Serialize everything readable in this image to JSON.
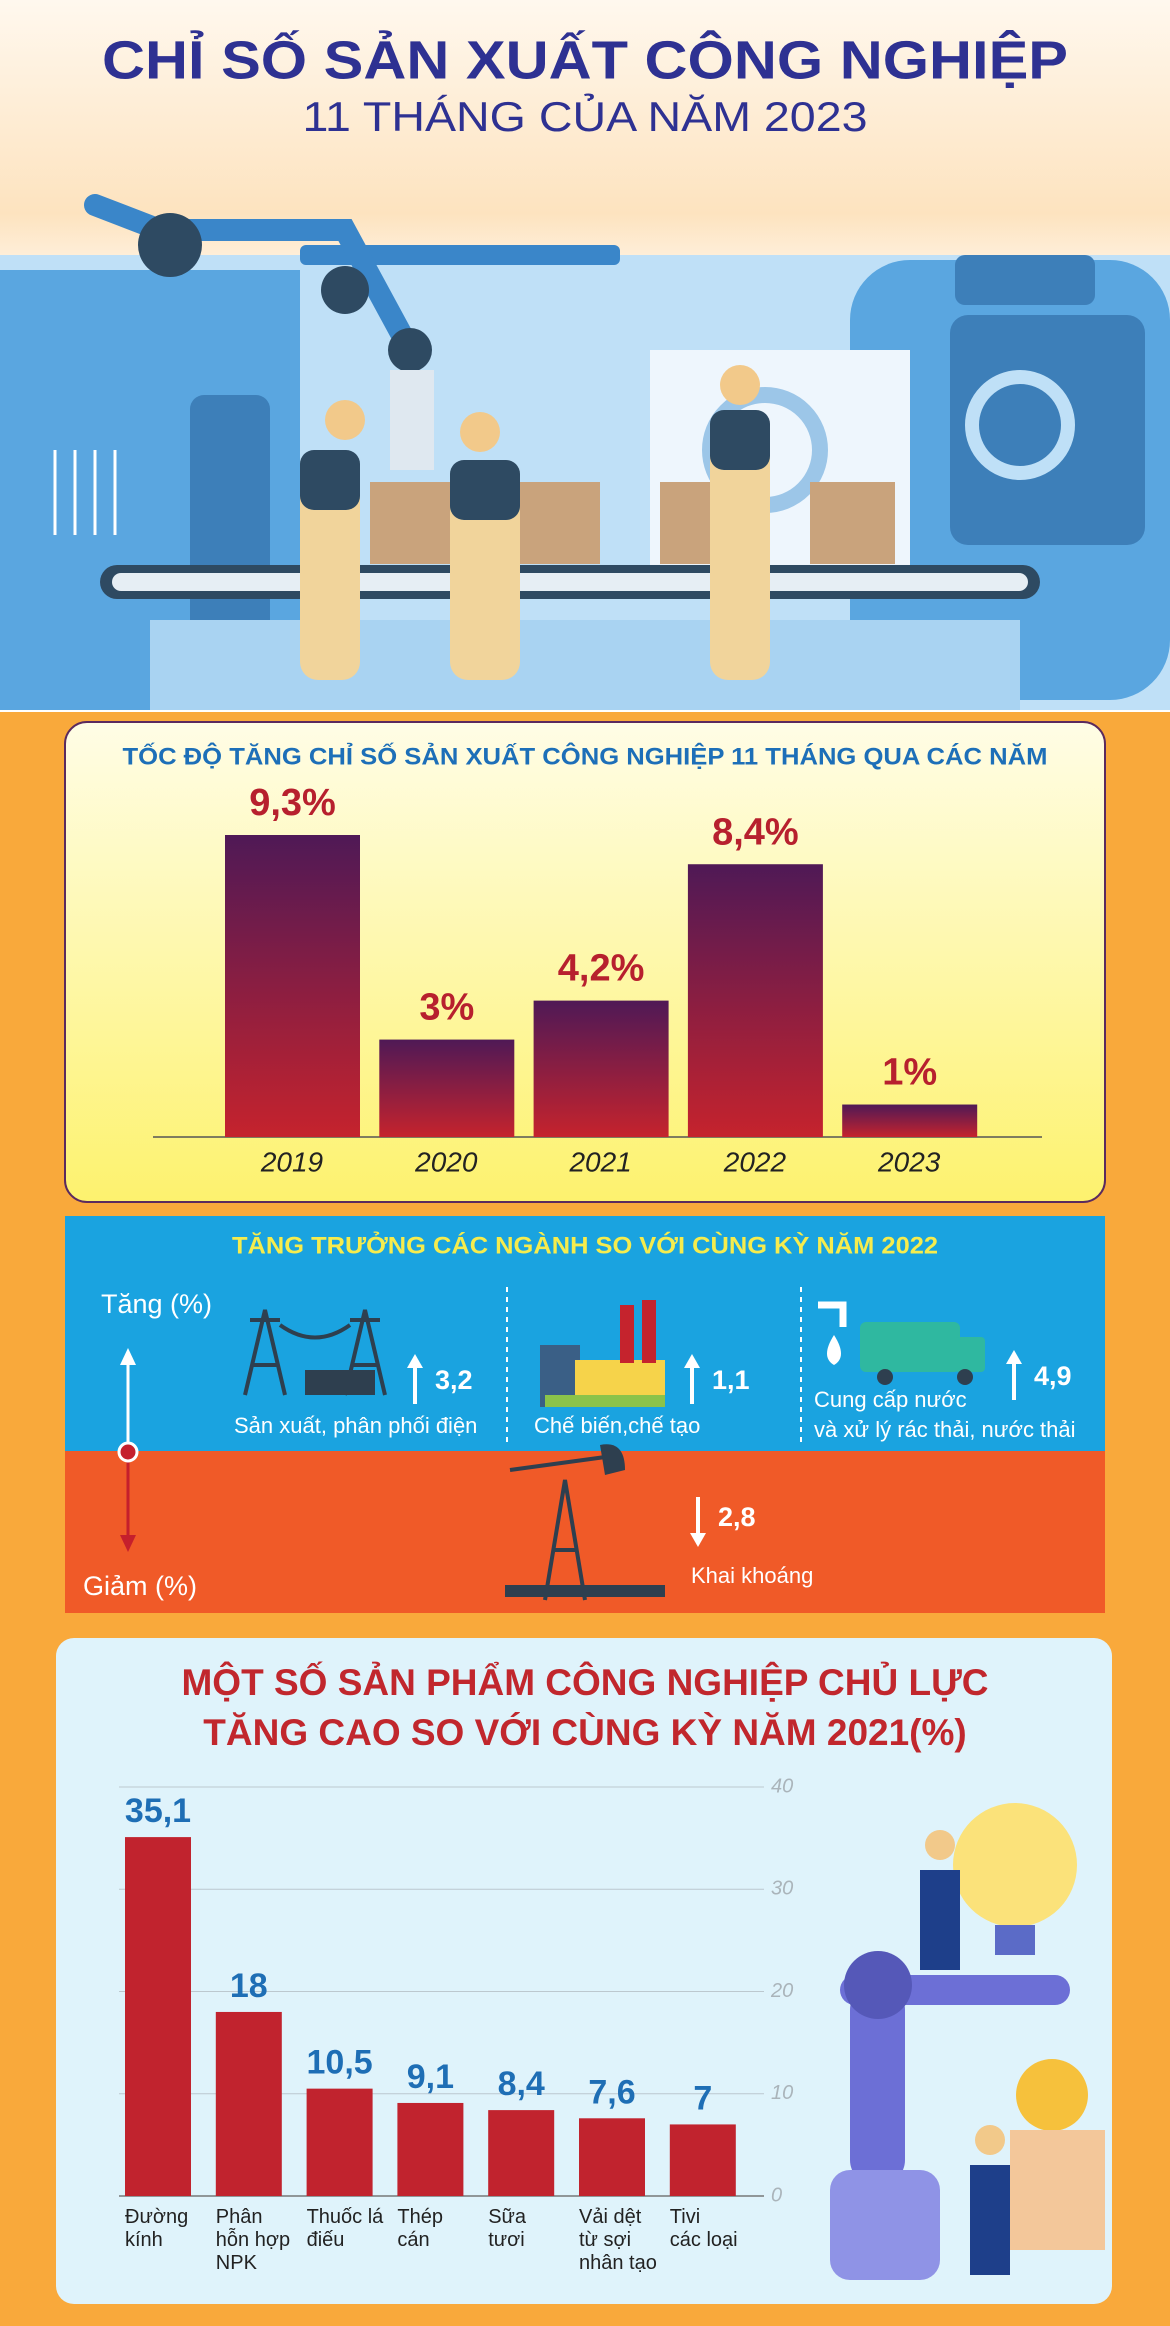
{
  "header": {
    "title": "CHỈ SỐ SẢN XUẤT CÔNG NGHIỆP",
    "subtitle": "11 THÁNG CỦA NĂM 2023"
  },
  "chart_data": [
    {
      "type": "bar",
      "title": "TỐC ĐỘ TĂNG CHỈ SỐ SẢN XUẤT CÔNG NGHIỆP 11 THÁNG QUA CÁC NĂM",
      "categories": [
        "2019",
        "2020",
        "2021",
        "2022",
        "2023"
      ],
      "values": [
        9.3,
        3,
        4.2,
        8.4,
        1
      ],
      "value_labels": [
        "9,3%",
        "3%",
        "4,2%",
        "8,4%",
        "1%"
      ],
      "colors": [
        "#4f1956",
        "#c5232d"
      ]
    },
    {
      "type": "bar",
      "title": "MỘT SỐ SẢN PHẨM CÔNG NGHIỆP CHỦ LỰC\nTĂNG CAO SO VỚI CÙNG KỲ NĂM 2021(%)",
      "categories": [
        "Đường\nkính",
        "Phân\nhỗn hợp\nNPK",
        "Thuốc lá\nđiếu",
        "Thép\ncán",
        "Sữa\ntươi",
        "Vải dệt\ntừ sợi\nnhân tạo",
        "Tivi\ncác loại"
      ],
      "values": [
        35.1,
        18,
        10.5,
        9.1,
        8.4,
        7.6,
        7
      ],
      "value_labels": [
        "35,1",
        "18",
        "10,5",
        "9,1",
        "8,4",
        "7,6",
        "7"
      ],
      "color": "#c1232e",
      "ylim": [
        0,
        40
      ],
      "yticks": [
        0,
        10,
        20,
        30,
        40
      ],
      "grid": true
    }
  ],
  "sectors": {
    "title": "TĂNG TRƯỞNG CÁC NGÀNH SO VỚI CÙNG KỲ NĂM 2022",
    "increase_label": "Tăng (%)",
    "decrease_label": "Giảm (%)",
    "items": [
      {
        "label": "Sản xuất, phân phối điện",
        "value": "3,2"
      },
      {
        "label": "Chế biến,chế tạo",
        "value": "1,1"
      },
      {
        "label": "Cung cấp nước\nvà xử lý rác thải, nước thải",
        "value": "4,9"
      },
      {
        "label": "Khai khoáng",
        "value": "2,8"
      }
    ]
  }
}
